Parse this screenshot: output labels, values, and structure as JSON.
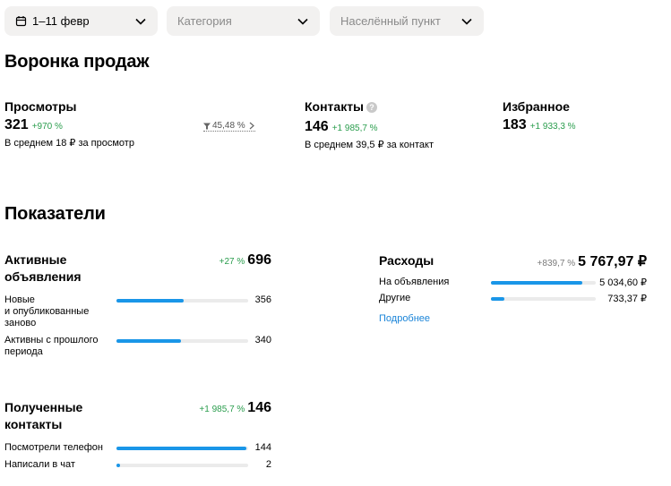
{
  "filters": {
    "period": "1–11 февр",
    "category": "Категория",
    "location": "Населённый пункт"
  },
  "funnel": {
    "title": "Воронка продаж",
    "views": {
      "label": "Просмотры",
      "value": "321",
      "delta": "+970 %",
      "note": "В среднем 18 ₽ за просмотр"
    },
    "conversion": "45,48 %",
    "contacts": {
      "label": "Контакты",
      "help": "?",
      "value": "146",
      "delta": "+1 985,7 %",
      "note": "В среднем 39,5 ₽ за контакт"
    },
    "favorites": {
      "label": "Избранное",
      "value": "183",
      "delta": "+1 933,3 %"
    }
  },
  "metrics": {
    "title": "Показатели",
    "active_ads": {
      "title_line1": "Активные",
      "title_line2": "объявления",
      "delta": "+27 %",
      "total": "696",
      "rows": [
        {
          "label_lines": [
            "Новые",
            "и опубликованные",
            "заново"
          ],
          "value": "356",
          "fraction": 0.51
        },
        {
          "label_lines": [
            "Активны с прошлого",
            "периода"
          ],
          "value": "340",
          "fraction": 0.49
        }
      ]
    },
    "expenses": {
      "title": "Расходы",
      "delta": "+839,7 %",
      "total": "5 767,97 ₽",
      "rows": [
        {
          "label": "На объявления",
          "value": "5 034,60 ₽",
          "fraction": 0.87
        },
        {
          "label": "Другие",
          "value": "733,37 ₽",
          "fraction": 0.13
        }
      ],
      "more_link": "Подробнее"
    },
    "contacts": {
      "title_line1": "Полученные",
      "title_line2": "контакты",
      "delta": "+1 985,7 %",
      "total": "146",
      "rows": [
        {
          "label": "Посмотрели телефон",
          "value": "144",
          "fraction": 0.986
        },
        {
          "label": "Написали в чат",
          "value": "2",
          "fraction": 0.014
        }
      ]
    }
  },
  "colors": {
    "accent": "#1a96e8",
    "positive": "#2a9d4d",
    "link": "#1a84d8",
    "filter_bg": "#f2f1f0"
  }
}
